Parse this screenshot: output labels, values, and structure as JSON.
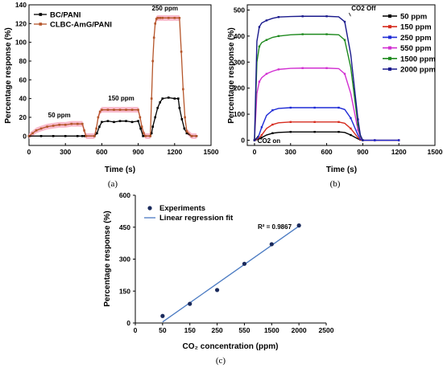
{
  "chart_data": [
    {
      "id": "a",
      "panel_label": "(a)",
      "type": "line",
      "xlabel": "Time (s)",
      "ylabel": "Percentage response (%)",
      "xlim": [
        0,
        1500
      ],
      "ylim": [
        -10,
        140
      ],
      "xticks": [
        0,
        300,
        600,
        900,
        1200,
        1500
      ],
      "yticks": [
        0,
        20,
        40,
        60,
        80,
        100,
        120,
        140
      ],
      "legend_position": "top-left",
      "annotations": [
        {
          "text": "50 ppm",
          "x": 250,
          "y": 20
        },
        {
          "text": "150 ppm",
          "x": 760,
          "y": 38
        },
        {
          "text": "250 ppm",
          "x": 1120,
          "y": 134
        }
      ],
      "series": [
        {
          "name": "BC/PANI",
          "color": "#000000",
          "marker": "square",
          "x": [
            0,
            100,
            200,
            300,
            400,
            440,
            460,
            540,
            560,
            580,
            600,
            650,
            700,
            750,
            800,
            850,
            900,
            920,
            940,
            1000,
            1010,
            1020,
            1040,
            1060,
            1080,
            1100,
            1150,
            1200,
            1230,
            1240,
            1260,
            1280,
            1300,
            1340,
            1380
          ],
          "y": [
            0,
            0,
            0,
            0,
            0,
            0,
            0,
            0,
            3,
            10,
            15,
            16,
            15,
            16,
            16,
            15,
            16,
            8,
            0,
            0,
            3,
            10,
            20,
            30,
            36,
            40,
            41,
            40,
            40,
            30,
            18,
            8,
            3,
            0,
            0
          ]
        },
        {
          "name": "CLBC-AmG/PANI",
          "color": "#b5562b",
          "band_color": "#f7b3c7",
          "marker": "square",
          "x": [
            0,
            30,
            60,
            100,
            150,
            200,
            250,
            300,
            350,
            400,
            440,
            455,
            470,
            540,
            555,
            570,
            585,
            600,
            650,
            700,
            750,
            800,
            850,
            900,
            915,
            930,
            945,
            960,
            1000,
            1010,
            1020,
            1030,
            1040,
            1050,
            1060,
            1080,
            1100,
            1150,
            1200,
            1240,
            1255,
            1270,
            1285,
            1300,
            1340,
            1380
          ],
          "y": [
            0,
            3,
            6,
            8,
            10,
            11,
            12,
            12,
            13,
            13,
            13,
            6,
            0,
            0,
            8,
            20,
            26,
            28,
            28,
            28,
            28,
            28,
            28,
            28,
            20,
            10,
            3,
            0,
            0,
            40,
            80,
            105,
            120,
            125,
            126,
            126,
            126,
            126,
            126,
            126,
            90,
            50,
            20,
            5,
            0,
            0
          ]
        }
      ]
    },
    {
      "id": "b",
      "panel_label": "(b)",
      "type": "line",
      "xlabel": "Time (s)",
      "ylabel": "Percentage response (%)",
      "xlim": [
        -60,
        1500
      ],
      "ylim": [
        -20,
        520
      ],
      "xticks": [
        0,
        300,
        600,
        900,
        1200,
        1500
      ],
      "yticks": [
        0,
        100,
        200,
        300,
        400,
        500
      ],
      "legend_position": "top-right",
      "annotations": [
        {
          "text": "CO2 Off",
          "x": 880,
          "y": 495
        },
        {
          "text": "CO2 on",
          "x": 80,
          "y": -45
        }
      ],
      "series": [
        {
          "name": "50 ppm",
          "color": "#000000",
          "x": [
            0,
            30,
            60,
            100,
            150,
            200,
            300,
            400,
            500,
            600,
            700,
            750,
            800,
            860,
            880,
            900,
            1000,
            1100,
            1200
          ],
          "y": [
            0,
            3,
            10,
            20,
            27,
            30,
            32,
            32,
            32,
            32,
            32,
            30,
            20,
            5,
            2,
            0,
            0,
            0,
            0
          ]
        },
        {
          "name": "150 ppm",
          "color": "#d62c1f",
          "x": [
            0,
            30,
            60,
            100,
            150,
            200,
            300,
            400,
            500,
            600,
            700,
            750,
            800,
            860,
            880,
            900,
            1000,
            1100,
            1200
          ],
          "y": [
            0,
            5,
            20,
            45,
            60,
            67,
            70,
            70,
            70,
            70,
            70,
            65,
            45,
            10,
            3,
            0,
            0,
            0,
            0
          ]
        },
        {
          "name": "250 ppm",
          "color": "#1f2bd6",
          "x": [
            0,
            30,
            60,
            100,
            150,
            200,
            300,
            400,
            500,
            600,
            700,
            750,
            800,
            860,
            880,
            900,
            1000,
            1100,
            1200
          ],
          "y": [
            0,
            10,
            50,
            95,
            115,
            122,
            125,
            125,
            125,
            125,
            125,
            118,
            85,
            20,
            5,
            0,
            0,
            0,
            0
          ]
        },
        {
          "name": "550 ppm",
          "color": "#d12fd1",
          "x": [
            0,
            20,
            40,
            60,
            100,
            150,
            200,
            300,
            400,
            500,
            600,
            700,
            750,
            800,
            860,
            880,
            900
          ],
          "y": [
            0,
            180,
            225,
            240,
            255,
            265,
            272,
            276,
            277,
            277,
            277,
            275,
            255,
            180,
            40,
            10,
            0
          ]
        },
        {
          "name": "1500 ppm",
          "color": "#1f8a1f",
          "x": [
            0,
            20,
            40,
            60,
            100,
            150,
            200,
            300,
            400,
            500,
            600,
            700,
            750,
            800,
            860,
            880,
            900
          ],
          "y": [
            0,
            300,
            360,
            375,
            385,
            395,
            400,
            405,
            407,
            407,
            407,
            405,
            385,
            280,
            60,
            15,
            0
          ]
        },
        {
          "name": "2000 ppm",
          "color": "#1a1a8c",
          "x": [
            0,
            20,
            40,
            60,
            100,
            150,
            200,
            300,
            400,
            500,
            600,
            700,
            750,
            800,
            860,
            880,
            900
          ],
          "y": [
            0,
            380,
            435,
            450,
            460,
            468,
            473,
            475,
            476,
            476,
            476,
            474,
            455,
            330,
            80,
            20,
            0
          ]
        }
      ]
    },
    {
      "id": "c",
      "panel_label": "(c)",
      "type": "scatter",
      "xlabel": "CO₂ concentration (ppm)",
      "ylabel": "Percentage response (%)",
      "categories": [
        "0",
        "50",
        "150",
        "250",
        "550",
        "1500",
        "2000",
        "2500"
      ],
      "yticks": [
        0,
        150,
        300,
        450,
        600
      ],
      "ylim": [
        0,
        600
      ],
      "legend_position": "top-left",
      "r2_label": "R² = 0.9867",
      "series": [
        {
          "name": "Experiments",
          "color": "#1a2a5c",
          "marker": "circle",
          "x_categories": [
            "50",
            "150",
            "250",
            "550",
            "1500",
            "2000"
          ],
          "y": [
            33,
            90,
            155,
            278,
            370,
            458
          ]
        },
        {
          "name": "Linear regression fit",
          "color": "#4a7ac2",
          "marker": "line",
          "x_categories": [
            "50",
            "2000"
          ],
          "y": [
            5,
            455
          ]
        }
      ]
    }
  ]
}
